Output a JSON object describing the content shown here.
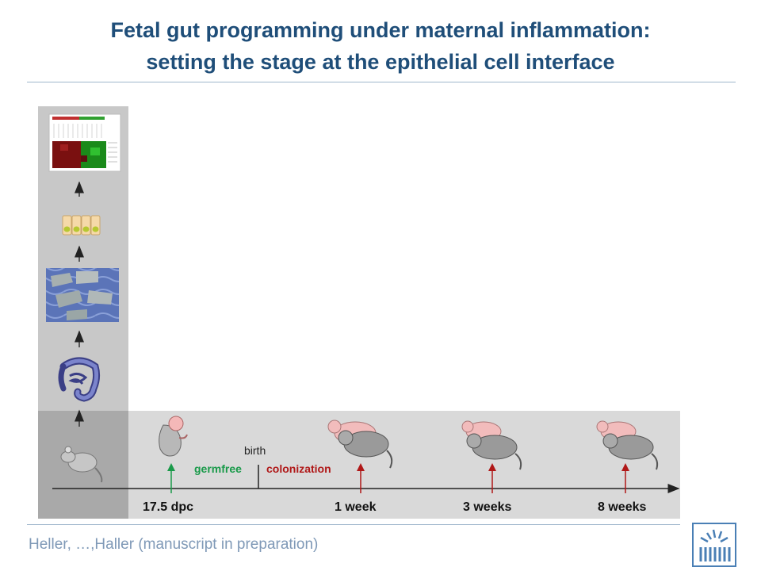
{
  "title": {
    "line1": "Fetal gut programming under maternal inflammation:",
    "line2": "setting the stage at the epithelial cell interface"
  },
  "timeline": {
    "points": [
      {
        "label": "17.5 dpc",
        "arrow_color": "#1a9a4a"
      },
      {
        "label": "1 week",
        "arrow_color": "#b01818"
      },
      {
        "label": "3 weeks",
        "arrow_color": "#b01818"
      },
      {
        "label": "8 weeks",
        "arrow_color": "#b01818"
      }
    ],
    "birth_label": "birth",
    "germfree_label": "germfree",
    "colonization_label": "colonization",
    "germfree_color": "#1a9a4a",
    "colonization_color": "#b01818"
  },
  "sidebar_steps": [
    "mouse-icon",
    "intestine-icon",
    "tissue-section-image",
    "epithelial-cells-icon",
    "heatmap-image"
  ],
  "footer": {
    "citation": "Heller, …,Haller (manuscript in preparation)"
  }
}
